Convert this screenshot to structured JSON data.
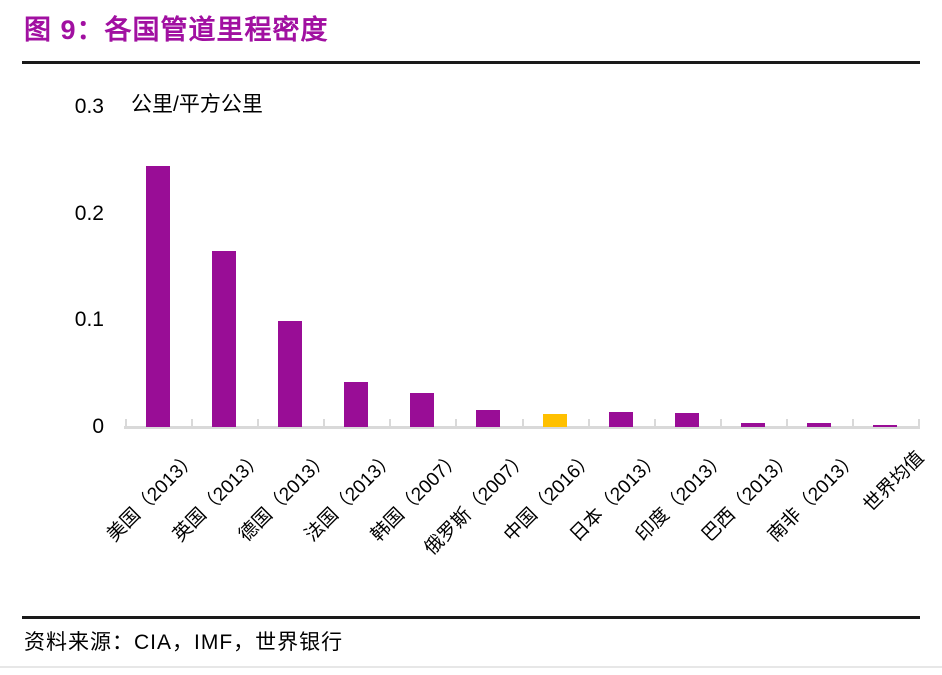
{
  "header": {
    "title": "图 9：各国管道里程密度"
  },
  "footer": {
    "source": "资料来源：CIA，IMF，世界银行"
  },
  "colors": {
    "title": "#A110A1",
    "bar": "#990D96",
    "highlight_bar": "#FFC000",
    "axis": "#D9D9D9",
    "header_rule": "#1a1a1a"
  },
  "chart_data": {
    "type": "bar",
    "title": "图 9：各国管道里程密度",
    "unit_label": "公里/平方公里",
    "categories": [
      "美国（2013）",
      "英国（2013）",
      "德国（2013）",
      "法国（2013）",
      "韩国（2007）",
      "俄罗斯（2007）",
      "中国（2016）",
      "日本（2013）",
      "印度（2013）",
      "巴西（2013）",
      "南非（2013）",
      "世界均值"
    ],
    "values": [
      0.245,
      0.165,
      0.099,
      0.042,
      0.032,
      0.016,
      0.012,
      0.014,
      0.013,
      0.004,
      0.004,
      0.0015
    ],
    "highlight_index": 6,
    "bar_color": "#990D96",
    "highlight_color": "#FFC000",
    "xlabel": "",
    "ylabel": "公里/平方公里",
    "ylim": [
      0,
      0.3
    ],
    "yticks": [
      0,
      0.1,
      0.2,
      0.3
    ],
    "grid": false,
    "legend": false,
    "x_label_rotation_deg": 45,
    "source": "资料来源：CIA，IMF，世界银行"
  }
}
